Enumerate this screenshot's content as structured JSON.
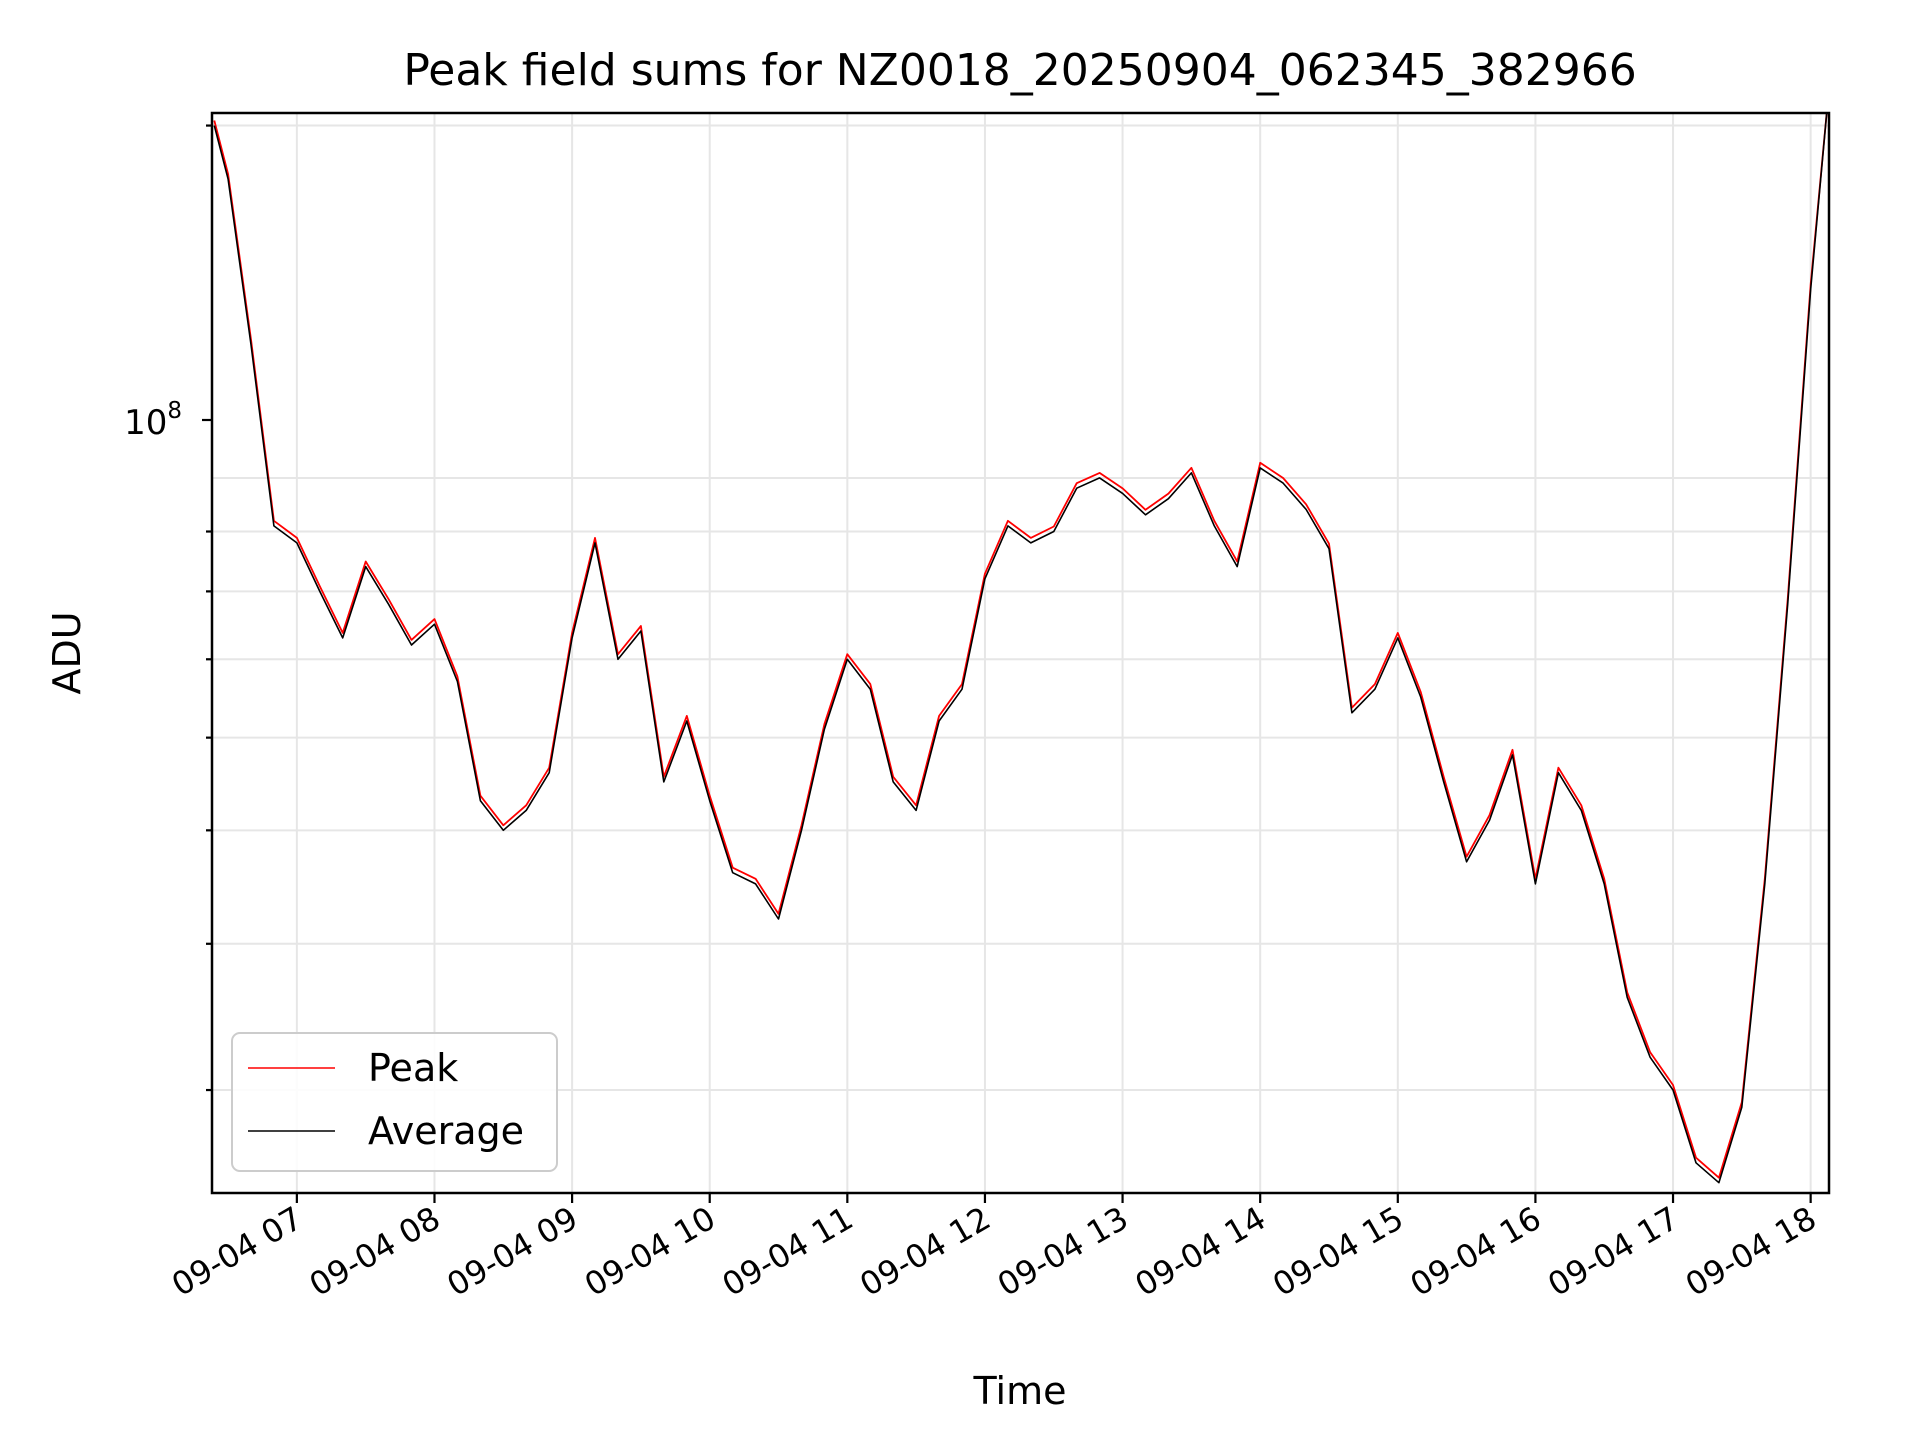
{
  "chart_data": {
    "type": "line",
    "title": "Peak field sums for NZ0018_20250904_062345_382966",
    "xlabel": "Time",
    "ylabel": "ADU",
    "x_ticks": [
      "09-04 07",
      "09-04 08",
      "09-04 09",
      "09-04 10",
      "09-04 11",
      "09-04 12",
      "09-04 13",
      "09-04 14",
      "09-04 15",
      "09-04 16",
      "09-04 17",
      "09-04 18"
    ],
    "y_tick": {
      "base": "10",
      "exp": "8"
    },
    "xlim": [
      "2025-09-04 06:23",
      "2025-09-04 18:08"
    ],
    "ylim": [
      24500000,
      205000000
    ],
    "yscale": "log",
    "grid": true,
    "legend": "lower-left",
    "series": [
      {
        "name": "Peak",
        "color": "#ff0000"
      },
      {
        "name": "Average",
        "color": "#000000"
      }
    ],
    "x": [
      "06:24",
      "06:30",
      "06:40",
      "06:50",
      "07:00",
      "07:10",
      "07:20",
      "07:30",
      "07:40",
      "07:50",
      "08:00",
      "08:10",
      "08:20",
      "08:30",
      "08:40",
      "08:50",
      "09:00",
      "09:10",
      "09:20",
      "09:30",
      "09:40",
      "09:50",
      "10:00",
      "10:10",
      "10:20",
      "10:30",
      "10:40",
      "10:50",
      "11:00",
      "11:10",
      "11:20",
      "11:30",
      "11:40",
      "11:50",
      "12:00",
      "12:10",
      "12:20",
      "12:30",
      "12:40",
      "12:50",
      "13:00",
      "13:10",
      "13:20",
      "13:30",
      "13:40",
      "13:50",
      "14:00",
      "14:10",
      "14:20",
      "14:30",
      "14:40",
      "14:50",
      "15:00",
      "15:10",
      "15:20",
      "15:30",
      "15:40",
      "15:50",
      "16:00",
      "16:10",
      "16:20",
      "16:30",
      "16:40",
      "16:50",
      "17:00",
      "17:10",
      "17:20",
      "17:30",
      "17:40",
      "17:50",
      "18:00",
      "18:07"
    ],
    "y": [
      200000000,
      180000000,
      130000000,
      91000000,
      88000000,
      80000000,
      73000000,
      84000000,
      78000000,
      72000000,
      75000000,
      67000000,
      53000000,
      50000000,
      52000000,
      56000000,
      73000000,
      88000000,
      70000000,
      74000000,
      55000000,
      62000000,
      53000000,
      46000000,
      45000000,
      42000000,
      50000000,
      61000000,
      70000000,
      66000000,
      55000000,
      52000000,
      62000000,
      66000000,
      82000000,
      91000000,
      88000000,
      90000000,
      98000000,
      100000000,
      97000000,
      93000000,
      96000000,
      101000000,
      91000000,
      84000000,
      102000000,
      99000000,
      94000000,
      87000000,
      63000000,
      66000000,
      73000000,
      65000000,
      55000000,
      47000000,
      51000000,
      58000000,
      45000000,
      56000000,
      52000000,
      45000000,
      36000000,
      32000000,
      30000000,
      26000000,
      25000000,
      29000000,
      45000000,
      78000000,
      145000000,
      205000000
    ],
    "peak_ratio": 1.01
  }
}
